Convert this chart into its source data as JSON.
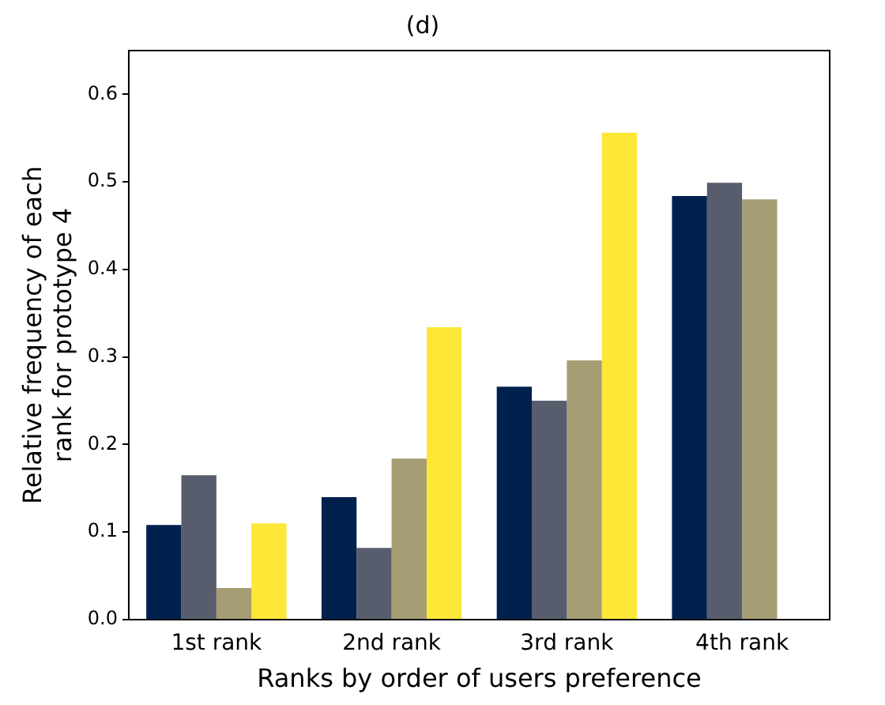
{
  "chart_data": {
    "type": "bar",
    "title": "(d)",
    "xlabel": "Ranks by order of users preference",
    "ylabel": "Relative frequency of each\nrank for prototype 4",
    "categories": [
      "1st rank",
      "2nd rank",
      "3rd rank",
      "4th rank"
    ],
    "series": [
      {
        "color": "#00204d",
        "values": [
          0.108,
          0.14,
          0.266,
          0.484
        ]
      },
      {
        "color": "#575d6d",
        "values": [
          0.165,
          0.082,
          0.25,
          0.499
        ]
      },
      {
        "color": "#a69d75",
        "values": [
          0.036,
          0.184,
          0.296,
          0.48
        ]
      },
      {
        "color": "#fde737",
        "values": [
          0.11,
          0.334,
          0.556,
          null
        ]
      }
    ],
    "ylim": [
      0,
      0.65
    ],
    "yticks": [
      {
        "value": 0,
        "label": "0.0"
      },
      {
        "value": 0.1,
        "label": "0.1"
      },
      {
        "value": 0.2,
        "label": "0.2"
      },
      {
        "value": 0.3,
        "label": "0.3"
      },
      {
        "value": 0.4,
        "label": "0.4"
      },
      {
        "value": 0.5,
        "label": "0.5"
      },
      {
        "value": 0.6,
        "label": "0.6"
      }
    ],
    "grid": false,
    "legend": false
  }
}
